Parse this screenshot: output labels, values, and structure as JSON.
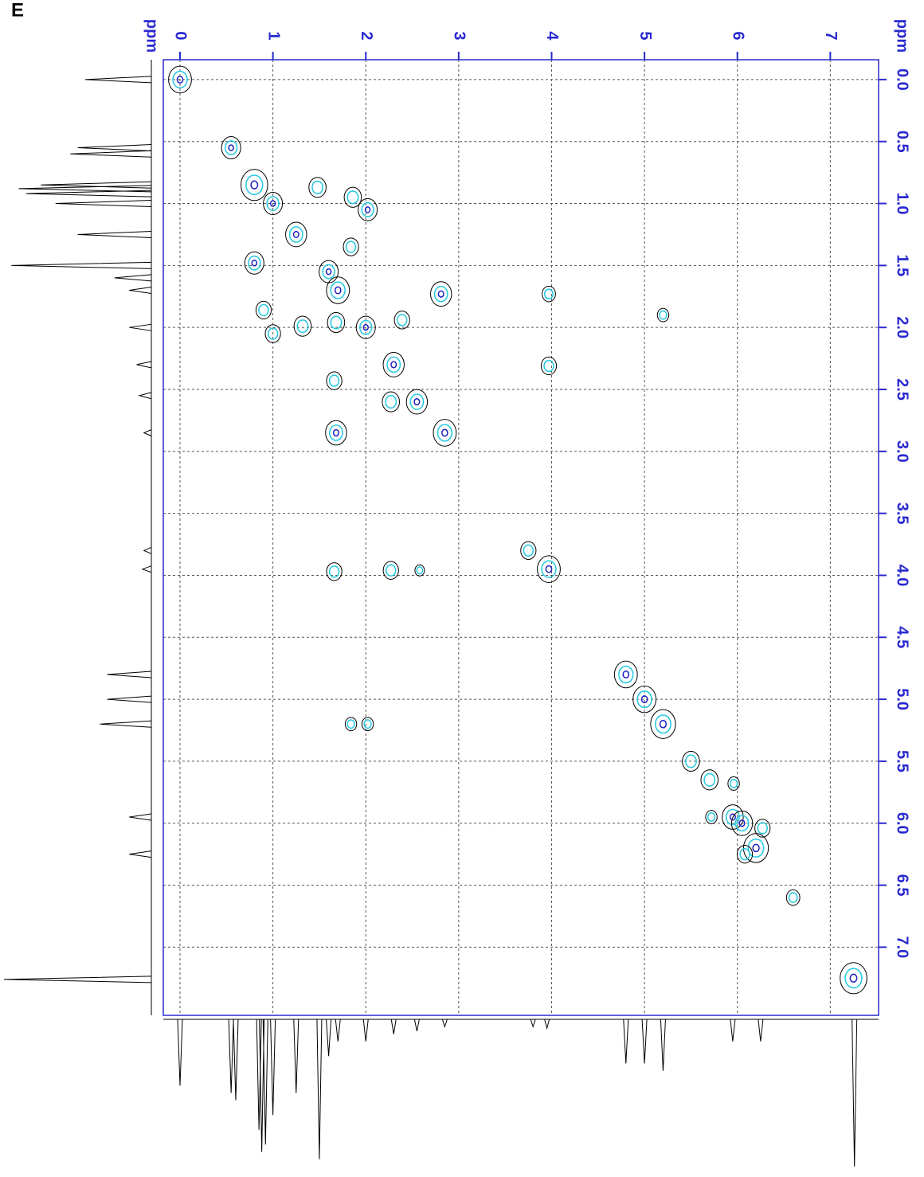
{
  "chart_data": {
    "type": "contour",
    "panel_label": "E",
    "xlabel": "ppm",
    "ylabel": "ppm",
    "xlim": [
      -0.18,
      7.52
    ],
    "ylim": [
      -0.16,
      7.55
    ],
    "xticks": [
      0,
      1,
      2,
      3,
      4,
      5,
      6,
      7
    ],
    "yticks": [
      {
        "value": 0,
        "label": "0.0"
      },
      0.5,
      {
        "value": 1,
        "label": "1.0"
      },
      1.5,
      {
        "value": 2,
        "label": "2.0"
      },
      2.5,
      {
        "value": 3,
        "label": "3.0"
      },
      3.5,
      {
        "value": 4,
        "label": "4.0"
      },
      4.5,
      {
        "value": 5,
        "label": "5.0"
      },
      5.5,
      {
        "value": 6,
        "label": "6.0"
      },
      6.5,
      {
        "value": 7,
        "label": "7.0"
      }
    ],
    "grid": true,
    "axis_color": "#2a2ad0",
    "contour_colors": [
      "#000000",
      "#22c8e0",
      "#2020c0"
    ],
    "peaks": {
      "x": [
        0,
        0.55,
        0.8,
        1.0,
        1.25,
        1.6,
        1.7,
        2.0,
        2.3,
        2.55,
        2.85,
        3.75,
        3.97,
        4.8,
        5.0,
        5.2,
        5.5,
        5.7,
        5.95,
        6.05,
        6.2,
        6.6,
        7.25,
        0.8,
        1.48,
        1.86,
        2.02,
        0.9,
        1.0,
        1.32,
        1.68,
        2.39,
        1.84,
        2.81,
        3.97,
        5.2,
        3.97,
        1.66,
        1.68,
        2.27,
        1.66,
        2.27,
        2.58,
        1.84,
        2.02,
        5.96,
        5.72,
        6.27,
        6.08
      ],
      "y": [
        0,
        0.55,
        0.85,
        1.0,
        1.25,
        1.55,
        1.7,
        2.0,
        2.3,
        2.6,
        2.85,
        3.8,
        3.95,
        4.8,
        5.0,
        5.2,
        5.5,
        5.65,
        5.95,
        6.0,
        6.2,
        6.6,
        7.25,
        1.48,
        0.87,
        0.95,
        1.05,
        1.86,
        2.05,
        1.99,
        1.96,
        1.94,
        1.35,
        1.73,
        1.73,
        1.9,
        2.31,
        2.43,
        2.85,
        2.6,
        3.97,
        3.96,
        3.96,
        5.2,
        5.2,
        5.68,
        5.95,
        6.04,
        6.25
      ],
      "size": [
        1.2,
        1.0,
        1.4,
        1.0,
        1.1,
        1.0,
        1.2,
        1.0,
        1.1,
        1.1,
        1.2,
        0.8,
        1.2,
        1.2,
        1.2,
        1.3,
        0.9,
        0.9,
        1.1,
        1.1,
        1.3,
        0.7,
        1.4,
        1.0,
        0.9,
        0.9,
        1.0,
        0.8,
        0.8,
        0.9,
        0.9,
        0.8,
        0.8,
        1.1,
        0.7,
        0.6,
        0.8,
        0.8,
        1.1,
        0.9,
        0.8,
        0.8,
        0.5,
        0.6,
        0.6,
        0.6,
        0.6,
        0.8,
        0.8
      ]
    },
    "projection": {
      "shifts": [
        0.0,
        0.55,
        0.6,
        0.85,
        0.88,
        0.92,
        1.0,
        1.25,
        1.5,
        1.6,
        1.7,
        2.0,
        2.3,
        2.55,
        2.85,
        3.8,
        3.95,
        4.8,
        5.0,
        5.2,
        5.95,
        6.25,
        7.26
      ],
      "intensities": [
        0.45,
        0.5,
        0.55,
        0.75,
        0.9,
        0.85,
        0.65,
        0.5,
        0.95,
        0.25,
        0.15,
        0.15,
        0.1,
        0.08,
        0.05,
        0.05,
        0.06,
        0.3,
        0.3,
        0.35,
        0.15,
        0.15,
        1.0
      ]
    }
  }
}
